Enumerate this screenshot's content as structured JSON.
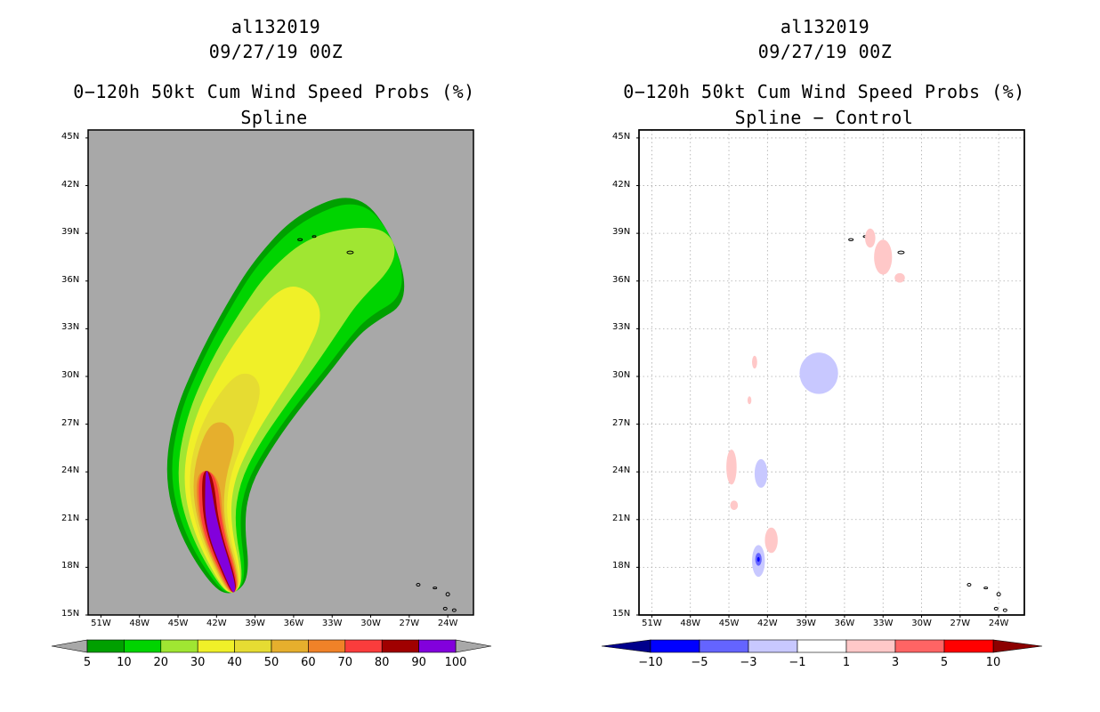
{
  "panels": [
    {
      "storm": "al132019",
      "datetime": "09/27/19 00Z",
      "title": "0−120h 50kt Cum Wind Speed Probs (%)",
      "subtitle": "Spline"
    },
    {
      "storm": "al132019",
      "datetime": "09/27/19 00Z",
      "title": "0−120h 50kt Cum Wind Speed Probs (%)",
      "subtitle": "Spline − Control"
    }
  ],
  "chart_data": [
    {
      "type": "heatmap",
      "title": "0−120h 50kt Cum Wind Speed Probs (%)",
      "subtitle": "Spline",
      "units": "%",
      "xlim": [
        -52,
        -22
      ],
      "ylim": [
        15,
        45.5
      ],
      "xticks": [
        "51W",
        "48W",
        "45W",
        "42W",
        "39W",
        "36W",
        "33W",
        "30W",
        "27W",
        "24W"
      ],
      "yticks": [
        "15N",
        "18N",
        "21N",
        "24N",
        "27N",
        "30N",
        "33N",
        "36N",
        "39N",
        "42N",
        "45N"
      ],
      "grid": false,
      "colorbar": {
        "labels": [
          "5",
          "10",
          "20",
          "30",
          "40",
          "50",
          "60",
          "70",
          "80",
          "90",
          "100"
        ],
        "colors": [
          "#00a000",
          "#00d400",
          "#a0e632",
          "#f0f028",
          "#e6dc32",
          "#e6af2d",
          "#f08228",
          "#fa3c3c",
          "#a00000",
          "#8200dc"
        ]
      },
      "track_center": [
        [
          -40.8,
          17.0
        ],
        [
          -42.4,
          20.5
        ],
        [
          -42.7,
          23.5
        ],
        [
          -41.6,
          26.5
        ],
        [
          -39.6,
          29.5
        ],
        [
          -37.3,
          32.3
        ],
        [
          -35.2,
          34.8
        ],
        [
          -32.8,
          36.8
        ],
        [
          -29.0,
          38.2
        ]
      ],
      "contour_halfwidths_deg": [
        {
          "level": "5",
          "w": [
            1.5,
            2.6,
            3.4,
            4.0,
            4.4,
            4.8,
            5.0,
            5.2,
            4.8
          ]
        },
        {
          "level": "10",
          "w": [
            1.2,
            2.2,
            3.0,
            3.6,
            4.0,
            4.4,
            4.6,
            4.6,
            4.2
          ]
        },
        {
          "level": "20",
          "w": [
            1.0,
            1.8,
            2.5,
            3.0,
            3.4,
            3.6,
            3.6,
            3.2,
            1.8
          ]
        },
        {
          "level": "30",
          "w": [
            0.9,
            1.5,
            2.0,
            2.4,
            2.6,
            2.6,
            2.0,
            0,
            0
          ]
        },
        {
          "level": "40",
          "w": [
            0.8,
            1.2,
            1.6,
            1.8,
            1.4,
            0,
            0,
            0,
            0
          ]
        },
        {
          "level": "50",
          "w": [
            0.7,
            1.0,
            1.3,
            1.3,
            0,
            0,
            0,
            0,
            0
          ]
        },
        {
          "level": "60",
          "w": [
            0.6,
            0.9,
            1.0,
            0,
            0,
            0,
            0,
            0,
            0
          ]
        },
        {
          "level": "70",
          "w": [
            0.5,
            0.8,
            0.8,
            0,
            0,
            0,
            0,
            0,
            0
          ]
        },
        {
          "level": "80",
          "w": [
            0.4,
            0.6,
            0.5,
            0,
            0,
            0,
            0,
            0,
            0
          ]
        },
        {
          "level": "90",
          "w": [
            0.3,
            0.5,
            0.2,
            0,
            0,
            0,
            0,
            0,
            0
          ]
        }
      ]
    },
    {
      "type": "heatmap",
      "title": "0−120h 50kt Cum Wind Speed Probs (%)",
      "subtitle": "Spline − Control",
      "units": "%",
      "xlim": [
        -52,
        -22
      ],
      "ylim": [
        15,
        45.5
      ],
      "xticks": [
        "51W",
        "48W",
        "45W",
        "42W",
        "39W",
        "36W",
        "33W",
        "30W",
        "27W",
        "24W"
      ],
      "yticks": [
        "15N",
        "18N",
        "21N",
        "24N",
        "27N",
        "30N",
        "33N",
        "36N",
        "39N",
        "42N",
        "45N"
      ],
      "grid": true,
      "colorbar": {
        "labels": [
          "−10",
          "−5",
          "−3",
          "−1",
          "1",
          "3",
          "5",
          "10"
        ],
        "colors": [
          "#00008c",
          "#0000ff",
          "#6464ff",
          "#c8c8ff",
          "#ffffff",
          "#ffc8c8",
          "#ff6464",
          "#ff0000",
          "#8c0000"
        ]
      },
      "anomalies": [
        {
          "category": "-3..-1",
          "lon": -38.0,
          "lat": 30.2,
          "rlon": 1.5,
          "rlat": 1.3
        },
        {
          "category": "-3..-1",
          "lon": -42.5,
          "lat": 23.9,
          "rlon": 0.5,
          "rlat": 0.9
        },
        {
          "category": "-3..-1",
          "lon": -42.7,
          "lat": 18.4,
          "rlon": 0.5,
          "rlat": 1.0
        },
        {
          "category": "-5..-3",
          "lon": -42.7,
          "lat": 18.5,
          "rlon": 0.25,
          "rlat": 0.4
        },
        {
          "category": "-10..-5",
          "lon": -42.7,
          "lat": 18.5,
          "rlon": 0.1,
          "rlat": 0.15
        },
        {
          "category": "1..3",
          "lon": -33.0,
          "lat": 37.5,
          "rlon": 0.7,
          "rlat": 1.1
        },
        {
          "category": "1..3",
          "lon": -34.0,
          "lat": 38.7,
          "rlon": 0.4,
          "rlat": 0.6
        },
        {
          "category": "1..3",
          "lon": -31.7,
          "lat": 36.2,
          "rlon": 0.4,
          "rlat": 0.3
        },
        {
          "category": "1..3",
          "lon": -44.8,
          "lat": 24.3,
          "rlon": 0.4,
          "rlat": 1.1
        },
        {
          "category": "1..3",
          "lon": -44.6,
          "lat": 21.9,
          "rlon": 0.3,
          "rlat": 0.3
        },
        {
          "category": "1..3",
          "lon": -41.7,
          "lat": 19.7,
          "rlon": 0.5,
          "rlat": 0.8
        },
        {
          "category": "1..3",
          "lon": -43.0,
          "lat": 30.9,
          "rlon": 0.2,
          "rlat": 0.4
        },
        {
          "category": "1..3",
          "lon": -43.4,
          "lat": 28.5,
          "rlon": 0.15,
          "rlat": 0.25
        }
      ]
    }
  ]
}
